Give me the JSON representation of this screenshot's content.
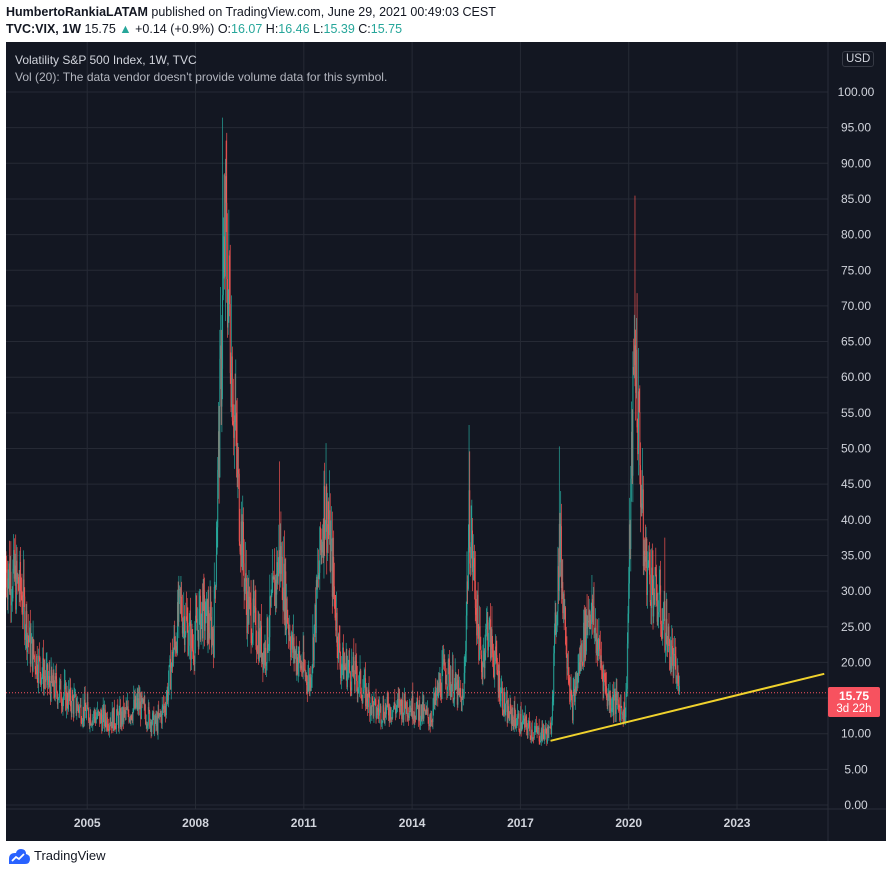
{
  "header": {
    "author": "HumbertoRankiaLATAM",
    "published_text": "published on TradingView.com, June 29, 2021 00:49:03 CEST",
    "symbol_text": "TVC:VIX, 1W",
    "last_price": "15.75",
    "change_arrow": "▲",
    "change_text": "+0.14 (+0.9%)",
    "open_label": "O:",
    "open_value": "16.07",
    "high_label": "H:",
    "high_value": "16.46",
    "low_label": "L:",
    "low_value": "15.39",
    "close_label": "C:",
    "close_value": "15.75"
  },
  "legend": {
    "title": "Volatility S&P 500 Index, 1W, TVC",
    "volume_note": "Vol (20): The data vendor doesn't provide volume data for this symbol."
  },
  "price_scale": {
    "currency": "USD",
    "current_price": "15.75",
    "countdown": "3d 22h"
  },
  "footer": {
    "brand": "TradingView"
  },
  "colors": {
    "background": "#131722",
    "up": "#26a69a",
    "down": "#ef5350",
    "trendline": "#f0d22d",
    "price_tag": "#f7525f",
    "grid": "#262a35"
  },
  "chart_data": {
    "type": "candlestick",
    "title": "Volatility S&P 500 Index, 1W, TVC",
    "x_axis": {
      "tick_labels": [
        "2005",
        "2008",
        "2011",
        "2014",
        "2017",
        "2020",
        "2023"
      ],
      "range": [
        "2002-10",
        "2025-06"
      ]
    },
    "y_axis": {
      "tick_labels": [
        "0.00",
        "5.00",
        "10.00",
        "15.00",
        "20.00",
        "25.00",
        "30.00",
        "35.00",
        "40.00",
        "45.00",
        "50.00",
        "55.00",
        "60.00",
        "65.00",
        "70.00",
        "75.00",
        "80.00",
        "85.00",
        "90.00",
        "95.00",
        "100.00"
      ],
      "range": [
        0,
        105
      ],
      "currency": "USD"
    },
    "grid": true,
    "last_close": 15.75,
    "approx_weekly_close_path": [
      {
        "date": "2002-10",
        "close": 33
      },
      {
        "date": "2003-03",
        "close": 30
      },
      {
        "date": "2003-06",
        "close": 22
      },
      {
        "date": "2003-12",
        "close": 17
      },
      {
        "date": "2004-06",
        "close": 15
      },
      {
        "date": "2004-12",
        "close": 13
      },
      {
        "date": "2005-06",
        "close": 12
      },
      {
        "date": "2005-12",
        "close": 12
      },
      {
        "date": "2006-06",
        "close": 14
      },
      {
        "date": "2006-12",
        "close": 11
      },
      {
        "date": "2007-03",
        "close": 14
      },
      {
        "date": "2007-08",
        "close": 28
      },
      {
        "date": "2007-12",
        "close": 22
      },
      {
        "date": "2008-03",
        "close": 27
      },
      {
        "date": "2008-07",
        "close": 24
      },
      {
        "date": "2008-10",
        "close": 69
      },
      {
        "date": "2008-11",
        "close": 80
      },
      {
        "date": "2009-03",
        "close": 45
      },
      {
        "date": "2009-06",
        "close": 28
      },
      {
        "date": "2009-12",
        "close": 21
      },
      {
        "date": "2010-05",
        "close": 35
      },
      {
        "date": "2010-09",
        "close": 22
      },
      {
        "date": "2011-03",
        "close": 17
      },
      {
        "date": "2011-08",
        "close": 43
      },
      {
        "date": "2011-10",
        "close": 35
      },
      {
        "date": "2012-01",
        "close": 20
      },
      {
        "date": "2012-06",
        "close": 18
      },
      {
        "date": "2013-01",
        "close": 13
      },
      {
        "date": "2013-12",
        "close": 14
      },
      {
        "date": "2014-07",
        "close": 12
      },
      {
        "date": "2014-12",
        "close": 19
      },
      {
        "date": "2015-06",
        "close": 14
      },
      {
        "date": "2015-08",
        "close": 40
      },
      {
        "date": "2015-12",
        "close": 19
      },
      {
        "date": "2016-02",
        "close": 25
      },
      {
        "date": "2016-08",
        "close": 13
      },
      {
        "date": "2017-06",
        "close": 10
      },
      {
        "date": "2017-11",
        "close": 10
      },
      {
        "date": "2018-02",
        "close": 37
      },
      {
        "date": "2018-06",
        "close": 13
      },
      {
        "date": "2018-12",
        "close": 28
      },
      {
        "date": "2019-06",
        "close": 15
      },
      {
        "date": "2019-12",
        "close": 13
      },
      {
        "date": "2020-03",
        "close": 66
      },
      {
        "date": "2020-06",
        "close": 35
      },
      {
        "date": "2020-10",
        "close": 29
      },
      {
        "date": "2021-01",
        "close": 25
      },
      {
        "date": "2021-03",
        "close": 21
      },
      {
        "date": "2021-06",
        "close": 15.75
      }
    ],
    "spikes": [
      {
        "date": "2008-10",
        "high": 96.4
      },
      {
        "date": "2020-03",
        "high": 85.47
      },
      {
        "date": "2015-08",
        "high": 53.3
      },
      {
        "date": "2018-02",
        "high": 50.3
      },
      {
        "date": "2010-05",
        "high": 48.2
      },
      {
        "date": "2011-08",
        "high": 48.0
      },
      {
        "date": "2021-01",
        "high": 37.5
      }
    ],
    "trendline": {
      "from": {
        "date": "2017-11",
        "value": 9.0
      },
      "to": {
        "date": "2025-06",
        "value": 18.4
      }
    }
  }
}
